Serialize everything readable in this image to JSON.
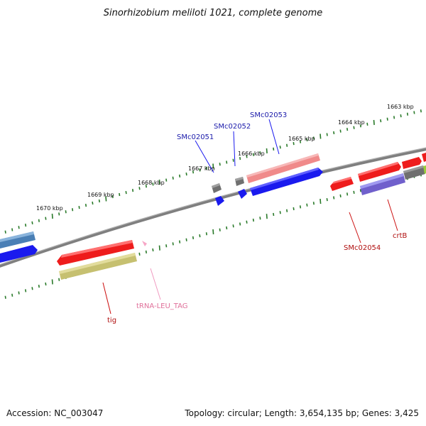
{
  "header": {
    "title": "Sinorhizobium meliloti 1021, complete genome"
  },
  "footer": {
    "accession": "Accession: NC_003047",
    "summary": "Topology: circular; Length: 3,654,135 bp; Genes: 3,425"
  },
  "scale": {
    "ticks": [
      {
        "label": "1663 kbp"
      },
      {
        "label": "1664 kbp"
      },
      {
        "label": "1665 kbp"
      },
      {
        "label": "1666 kbp"
      },
      {
        "label": "1667 kbp"
      },
      {
        "label": "1668 kbp"
      },
      {
        "label": "1669 kbp"
      },
      {
        "label": "1670 kbp"
      }
    ]
  },
  "genes": {
    "labels": [
      {
        "name": "SMc02051",
        "color": "#1a1aaa"
      },
      {
        "name": "SMc02052",
        "color": "#1a1aaa"
      },
      {
        "name": "SMc02053",
        "color": "#1a1aaa"
      },
      {
        "name": "SMc02054",
        "color": "#b01010"
      },
      {
        "name": "crtB",
        "color": "#b01010"
      },
      {
        "name": "tig",
        "color": "#b01010"
      },
      {
        "name": "tRNA-LEU_TAG",
        "color": "#e0709a"
      }
    ]
  },
  "colors": {
    "backbone": "#808080",
    "tick_mark": "#2a7a2a",
    "forward_red": "#ee1c1c",
    "forward_pink": "#f08a8a",
    "reverse_blue": "#1a1aee",
    "reverse_steel": "#4a7fb5",
    "reverse_olive": "#c6c070",
    "reverse_violet": "#7060cc",
    "gray_block": "#707070",
    "trna_pink": "#f7a6c6"
  }
}
